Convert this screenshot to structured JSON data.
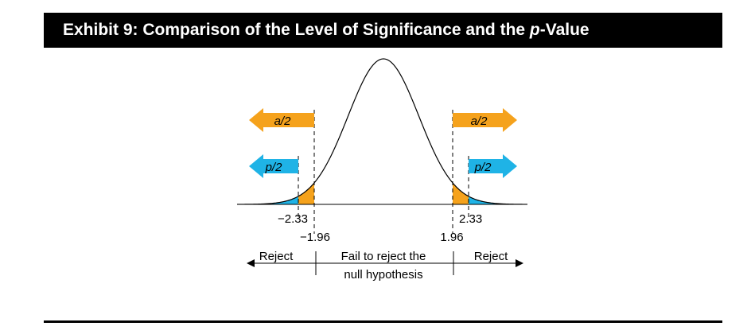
{
  "header": {
    "title_prefix": "Exhibit 9: Comparison of the Level of Significance and the ",
    "title_italic": "p",
    "title_suffix": "-Value"
  },
  "colors": {
    "header_bg": "#000000",
    "header_text": "#ffffff",
    "alpha_orange": "#f5a21c",
    "p_blue": "#1fb3e6",
    "curve": "#000000"
  },
  "arrows": {
    "alpha_left": "a/2",
    "alpha_right": "a/2",
    "p_left": "p/2",
    "p_right": "p/2"
  },
  "values": {
    "neg_p": "−2.33",
    "neg_alpha": "−1.96",
    "pos_alpha": "1.96",
    "pos_p": "2.33"
  },
  "regions": {
    "reject_left": "Reject",
    "fail_line1": "Fail to reject the",
    "fail_line2": "null hypothesis",
    "reject_right": "Reject"
  }
}
